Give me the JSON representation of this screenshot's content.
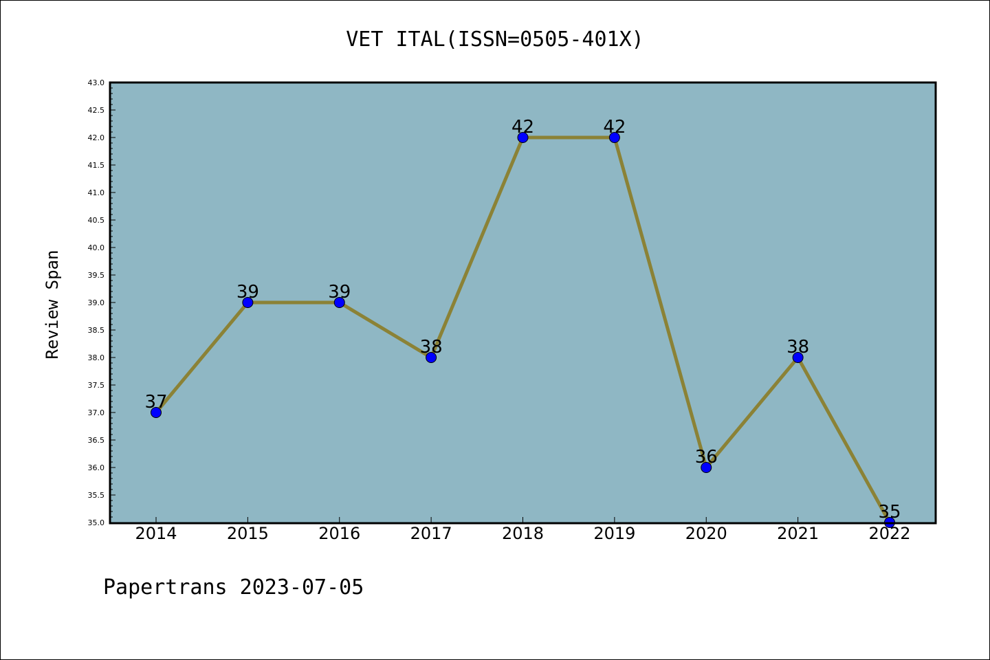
{
  "chart_data": {
    "type": "line",
    "title": "VET ITAL(ISSN=0505-401X)",
    "xlabel": "",
    "ylabel": "Review Span",
    "categories": [
      "2014",
      "2015",
      "2016",
      "2017",
      "2018",
      "2019",
      "2020",
      "2021",
      "2022"
    ],
    "series": [
      {
        "values": [
          37,
          39,
          39,
          38,
          42,
          42,
          36,
          38,
          35
        ],
        "data_labels": [
          "37",
          "39",
          "39",
          "38",
          "42",
          "42",
          "36",
          "38",
          "35"
        ]
      }
    ],
    "ylim": [
      35.0,
      43.0
    ],
    "yticks": [
      35.0,
      35.5,
      36.0,
      36.5,
      37.0,
      37.5,
      38.0,
      38.5,
      39.0,
      39.5,
      40.0,
      40.5,
      41.0,
      41.5,
      42.0,
      42.5,
      43.0
    ],
    "ytick_labels": [
      "35.0",
      "35.5",
      "36.0",
      "36.5",
      "37.0",
      "37.5",
      "38.0",
      "38.5",
      "39.0",
      "39.5",
      "40.0",
      "40.5",
      "41.0",
      "41.5",
      "42.0",
      "42.5",
      "43.0"
    ],
    "grid": false,
    "legend": "none",
    "colors": {
      "plot_background": "#8fb7c4",
      "line": "#8b8236",
      "marker": "#0000ff"
    }
  },
  "footer": {
    "watermark": "Papertrans 2023-07-05"
  }
}
